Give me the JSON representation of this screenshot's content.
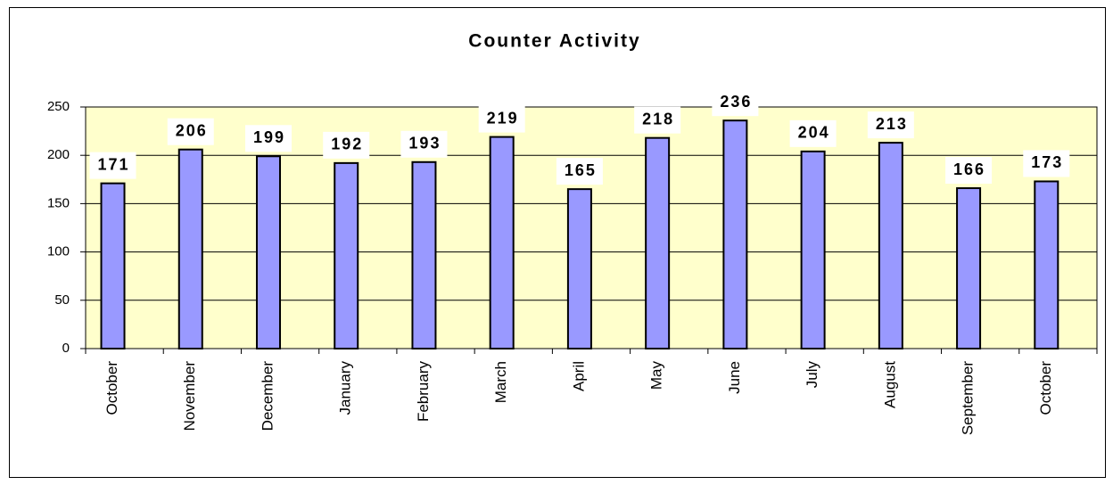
{
  "chart_data": {
    "type": "bar",
    "title": "Counter Activity",
    "categories": [
      "October",
      "November",
      "December",
      "January",
      "February",
      "March",
      "April",
      "May",
      "June",
      "July",
      "August",
      "September",
      "October"
    ],
    "values": [
      171,
      206,
      199,
      192,
      193,
      219,
      165,
      218,
      236,
      204,
      213,
      166,
      173
    ],
    "color": "#9999ff",
    "plot_background": "#ffffcc",
    "ylim": [
      0,
      250
    ],
    "yticks": [
      0,
      50,
      100,
      150,
      200,
      250
    ],
    "grid": true
  }
}
